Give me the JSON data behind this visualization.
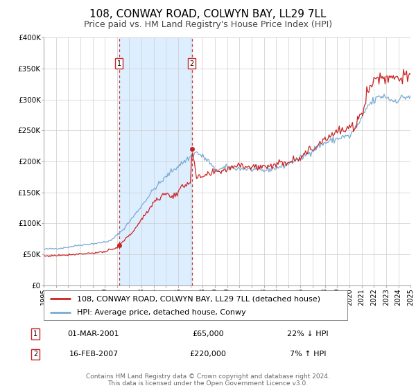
{
  "title": "108, CONWAY ROAD, COLWYN BAY, LL29 7LL",
  "subtitle": "Price paid vs. HM Land Registry's House Price Index (HPI)",
  "legend_line1": "108, CONWAY ROAD, COLWYN BAY, LL29 7LL (detached house)",
  "legend_line2": "HPI: Average price, detached house, Conwy",
  "footnote1": "Contains HM Land Registry data © Crown copyright and database right 2024.",
  "footnote2": "This data is licensed under the Open Government Licence v3.0.",
  "transaction1_label": "1",
  "transaction1_date": "01-MAR-2001",
  "transaction1_price": "£65,000",
  "transaction1_hpi": "22% ↓ HPI",
  "transaction2_label": "2",
  "transaction2_date": "16-FEB-2007",
  "transaction2_price": "£220,000",
  "transaction2_hpi": "7% ↑ HPI",
  "sale1_date_decimal": 2001.17,
  "sale1_value": 65000,
  "sale2_date_decimal": 2007.12,
  "sale2_value": 220000,
  "year_start": 1995,
  "year_end": 2025,
  "ymin": 0,
  "ymax": 400000,
  "yticks": [
    0,
    50000,
    100000,
    150000,
    200000,
    250000,
    300000,
    350000,
    400000
  ],
  "ytick_labels": [
    "£0",
    "£50K",
    "£100K",
    "£150K",
    "£200K",
    "£250K",
    "£300K",
    "£350K",
    "£400K"
  ],
  "hpi_color": "#7aaad0",
  "price_color": "#cc2222",
  "shade_color": "#ddeeff",
  "vline_color": "#cc3333",
  "grid_color": "#cccccc",
  "background_color": "#ffffff",
  "title_fontsize": 11,
  "subtitle_fontsize": 9,
  "axis_fontsize": 7.5,
  "legend_fontsize": 8,
  "table_fontsize": 8,
  "footnote_fontsize": 6.5,
  "box_color": "#cc2222"
}
